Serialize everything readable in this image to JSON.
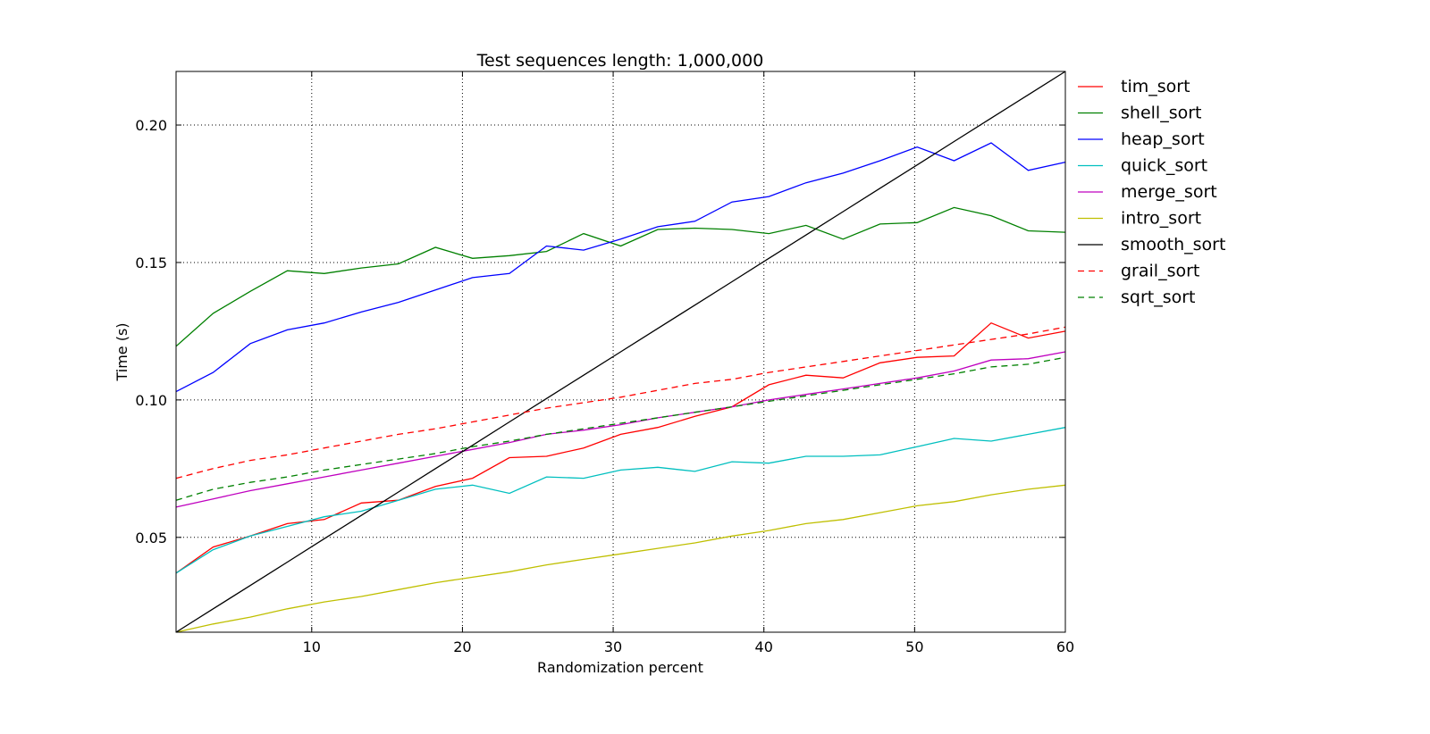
{
  "chart_data": {
    "type": "line",
    "title": "Test sequences length: 1,000,000",
    "xlabel": "Randomization percent",
    "ylabel": "Time (s)",
    "xlim": [
      1,
      60
    ],
    "ylim": [
      0.0155,
      0.2195
    ],
    "xticks": [
      10,
      20,
      30,
      40,
      50,
      60
    ],
    "yticks": [
      0.05,
      0.1,
      0.15,
      0.2
    ],
    "xtick_labels": [
      "10",
      "20",
      "30",
      "40",
      "50",
      "60"
    ],
    "ytick_labels": [
      "0.05",
      "0.10",
      "0.15",
      "0.20"
    ],
    "grid": true,
    "legend_position": "outside-right-top",
    "x": [
      1,
      3.46,
      5.92,
      8.38,
      10.83,
      13.29,
      15.75,
      18.21,
      20.67,
      23.12,
      25.58,
      28.04,
      30.5,
      32.96,
      35.42,
      37.88,
      40.33,
      42.79,
      45.25,
      47.71,
      50.17,
      52.62,
      55.08,
      57.54,
      60
    ],
    "series": [
      {
        "name": "tim_sort",
        "color": "#ff0000",
        "dash": "solid",
        "values": [
          0.037,
          0.0465,
          0.0505,
          0.055,
          0.0565,
          0.0625,
          0.0635,
          0.0685,
          0.0715,
          0.079,
          0.0795,
          0.0825,
          0.0875,
          0.09,
          0.094,
          0.0975,
          0.1055,
          0.109,
          0.108,
          0.1135,
          0.1155,
          0.116,
          0.128,
          0.1225,
          0.125
        ]
      },
      {
        "name": "shell_sort",
        "color": "#008000",
        "dash": "solid",
        "values": [
          0.1195,
          0.1315,
          0.1395,
          0.147,
          0.146,
          0.148,
          0.1495,
          0.1555,
          0.1515,
          0.1525,
          0.154,
          0.1605,
          0.156,
          0.162,
          0.1625,
          0.162,
          0.1605,
          0.1635,
          0.1585,
          0.164,
          0.1645,
          0.17,
          0.167,
          0.1615,
          0.161
        ]
      },
      {
        "name": "heap_sort",
        "color": "#0000ff",
        "dash": "solid",
        "values": [
          0.103,
          0.11,
          0.1205,
          0.1255,
          0.128,
          0.132,
          0.1355,
          0.14,
          0.1445,
          0.146,
          0.156,
          0.1545,
          0.1585,
          0.163,
          0.165,
          0.172,
          0.174,
          0.179,
          0.1825,
          0.187,
          0.192,
          0.187,
          0.1935,
          0.1835,
          0.1865
        ]
      },
      {
        "name": "quick_sort",
        "color": "#00bfbf",
        "dash": "solid",
        "values": [
          0.037,
          0.0455,
          0.0505,
          0.054,
          0.0575,
          0.0595,
          0.0635,
          0.0675,
          0.069,
          0.066,
          0.072,
          0.0715,
          0.0745,
          0.0755,
          0.074,
          0.0775,
          0.077,
          0.0795,
          0.0795,
          0.08,
          0.083,
          0.086,
          0.085,
          0.0875,
          0.09
        ]
      },
      {
        "name": "merge_sort",
        "color": "#bf00bf",
        "dash": "solid",
        "values": [
          0.061,
          0.064,
          0.067,
          0.0695,
          0.072,
          0.0745,
          0.077,
          0.0795,
          0.082,
          0.0845,
          0.0875,
          0.089,
          0.091,
          0.0935,
          0.0955,
          0.0975,
          0.1,
          0.102,
          0.104,
          0.106,
          0.108,
          0.1105,
          0.1145,
          0.115,
          0.1175
        ]
      },
      {
        "name": "intro_sort",
        "color": "#bfbf00",
        "dash": "solid",
        "values": [
          0.0155,
          0.0185,
          0.021,
          0.024,
          0.0265,
          0.0285,
          0.031,
          0.0335,
          0.0355,
          0.0375,
          0.04,
          0.042,
          0.044,
          0.046,
          0.048,
          0.0505,
          0.0525,
          0.055,
          0.0565,
          0.059,
          0.0615,
          0.063,
          0.0655,
          0.0675,
          0.069
        ]
      },
      {
        "name": "smooth_sort",
        "color": "#000000",
        "dash": "solid",
        "values": [
          0.0155,
          0.024,
          0.0325,
          0.041,
          0.0495,
          0.058,
          0.0665,
          0.075,
          0.0835,
          0.092,
          0.1005,
          0.109,
          0.1175,
          0.126,
          0.1345,
          0.143,
          0.1515,
          0.16,
          0.1685,
          0.177,
          0.1855,
          0.194,
          0.2025,
          0.211,
          0.2195
        ]
      },
      {
        "name": "grail_sort",
        "color": "#ff0000",
        "dash": "dashed",
        "values": [
          0.0715,
          0.075,
          0.078,
          0.08,
          0.0825,
          0.085,
          0.0875,
          0.0895,
          0.092,
          0.0945,
          0.097,
          0.099,
          0.101,
          0.1035,
          0.106,
          0.1075,
          0.11,
          0.112,
          0.114,
          0.116,
          0.118,
          0.12,
          0.122,
          0.124,
          0.1265
        ]
      },
      {
        "name": "sqrt_sort",
        "color": "#008000",
        "dash": "dashed",
        "values": [
          0.0635,
          0.0675,
          0.07,
          0.072,
          0.0745,
          0.0765,
          0.0785,
          0.0805,
          0.083,
          0.085,
          0.0875,
          0.0895,
          0.0915,
          0.0935,
          0.0955,
          0.0975,
          0.0995,
          0.1015,
          0.1035,
          0.1055,
          0.1075,
          0.1095,
          0.112,
          0.113,
          0.1155
        ]
      }
    ]
  }
}
